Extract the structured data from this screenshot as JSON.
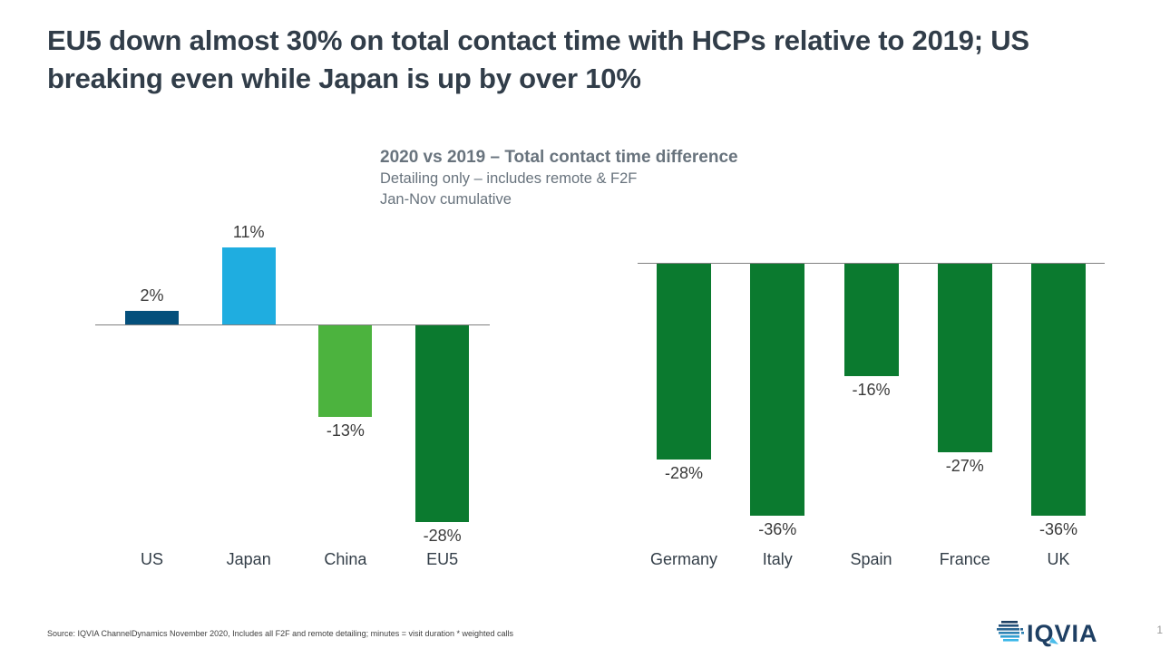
{
  "slide": {
    "title": "EU5 down almost 30% on total contact time with HCPs relative to 2019; US breaking even while Japan is up by over 10%",
    "source": "Source: IQVIA ChannelDynamics November 2020, Includes all F2F and remote detailing; minutes = visit duration * weighted calls",
    "logo_text": "IQVIA",
    "page_number": "1"
  },
  "chart_header": {
    "title": "2020 vs 2019 – Total contact time difference",
    "subtitle1": "Detailing only – includes remote & F2F",
    "subtitle2": "Jan-Nov cumulative"
  },
  "colors": {
    "dark_navy": "#04507c",
    "light_blue": "#1fade0",
    "light_green": "#4cb33e",
    "dark_green": "#0b7a2f",
    "baseline_gray": "#7f7f7f"
  },
  "chart_data": [
    {
      "type": "bar",
      "id": "global-markets",
      "categories": [
        "US",
        "Japan",
        "China",
        "EU5"
      ],
      "values": [
        2,
        11,
        -13,
        -28
      ],
      "labels": [
        "2%",
        "11%",
        "-13%",
        "-28%"
      ],
      "colors": [
        "#04507c",
        "#1fade0",
        "#4cb33e",
        "#0b7a2f"
      ],
      "unit": "%",
      "baseline": 0,
      "ylim": [
        -40,
        15
      ],
      "grid": false,
      "legend": "none"
    },
    {
      "type": "bar",
      "id": "eu5-countries",
      "categories": [
        "Germany",
        "Italy",
        "Spain",
        "France",
        "UK"
      ],
      "values": [
        -28,
        -36,
        -16,
        -27,
        -36
      ],
      "labels": [
        "-28%",
        "-36%",
        "-16%",
        "-27%",
        "-36%"
      ],
      "colors": [
        "#0b7a2f",
        "#0b7a2f",
        "#0b7a2f",
        "#0b7a2f",
        "#0b7a2f"
      ],
      "unit": "%",
      "baseline": 0,
      "ylim": [
        -40,
        0
      ],
      "grid": false,
      "legend": "none"
    }
  ]
}
